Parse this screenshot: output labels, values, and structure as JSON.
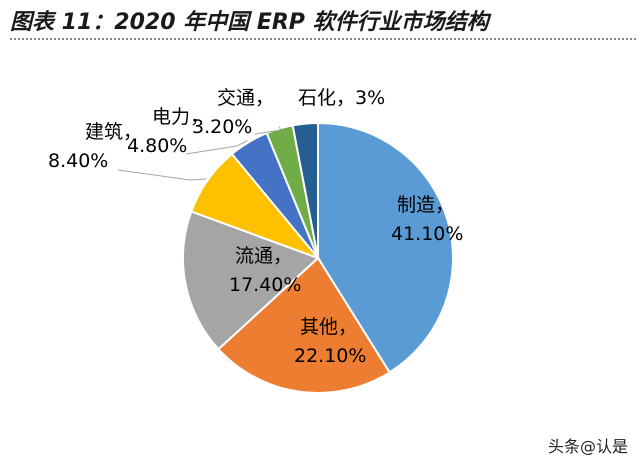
{
  "chart_data": {
    "type": "pie",
    "title": "图表 11：2020 年中国 ERP 软件行业市场结构",
    "slices": [
      {
        "name": "制造",
        "value": 41.1,
        "label_name": "制造，",
        "label_value": "41.10%",
        "color": "#5b9bd5"
      },
      {
        "name": "其他",
        "value": 22.1,
        "label_name": "其他，",
        "label_value": "22.10%",
        "color": "#ed7d31"
      },
      {
        "name": "流通",
        "value": 17.4,
        "label_name": "流通，",
        "label_value": "17.40%",
        "color": "#a5a5a5"
      },
      {
        "name": "建筑",
        "value": 8.4,
        "label_name": "建筑，",
        "label_value": "8.40%",
        "color": "#ffc000"
      },
      {
        "name": "电力",
        "value": 4.8,
        "label_name": "电力，",
        "label_value": "4.80%",
        "color": "#4472c4"
      },
      {
        "name": "交通",
        "value": 3.2,
        "label_name": "交通，",
        "label_value": "3.20%",
        "color": "#70ad47"
      },
      {
        "name": "石化",
        "value": 3.0,
        "label_name": "石化，3%",
        "label_value": "",
        "color": "#255e91"
      }
    ]
  },
  "watermark": "头条@认是"
}
